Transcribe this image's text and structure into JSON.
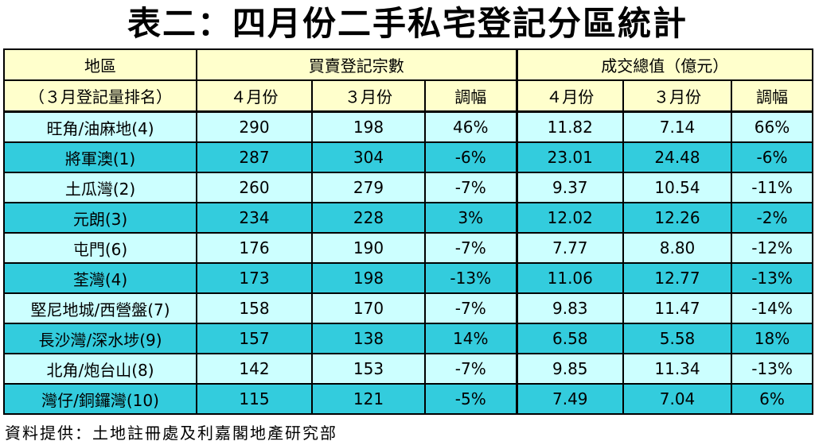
{
  "title": "表二：四月份二手私宅登記分區統計",
  "header": {
    "district": "地區",
    "rank_note": "（３月登記量排名）",
    "transactions": "買賣登記宗數",
    "value": "成交總值（億元）",
    "apr": "４月份",
    "mar": "３月份",
    "change": "調幅"
  },
  "rows": [
    {
      "district": "旺角/油麻地(4)",
      "tx_apr": "290",
      "tx_mar": "198",
      "tx_chg": "46%",
      "val_apr": "11.82",
      "val_mar": "7.14",
      "val_chg": "66%"
    },
    {
      "district": "將軍澳(1)",
      "tx_apr": "287",
      "tx_mar": "304",
      "tx_chg": "-6%",
      "val_apr": "23.01",
      "val_mar": "24.48",
      "val_chg": "-6%"
    },
    {
      "district": "土瓜灣(2)",
      "tx_apr": "260",
      "tx_mar": "279",
      "tx_chg": "-7%",
      "val_apr": "9.37",
      "val_mar": "10.54",
      "val_chg": "-11%"
    },
    {
      "district": "元朗(3)",
      "tx_apr": "234",
      "tx_mar": "228",
      "tx_chg": "3%",
      "val_apr": "12.02",
      "val_mar": "12.26",
      "val_chg": "-2%"
    },
    {
      "district": "屯門(6)",
      "tx_apr": "176",
      "tx_mar": "190",
      "tx_chg": "-7%",
      "val_apr": "7.77",
      "val_mar": "8.80",
      "val_chg": "-12%"
    },
    {
      "district": "荃灣(4)",
      "tx_apr": "173",
      "tx_mar": "198",
      "tx_chg": "-13%",
      "val_apr": "11.06",
      "val_mar": "12.77",
      "val_chg": "-13%"
    },
    {
      "district": "堅尼地城/西營盤(7)",
      "tx_apr": "158",
      "tx_mar": "170",
      "tx_chg": "-7%",
      "val_apr": "9.83",
      "val_mar": "11.47",
      "val_chg": "-14%"
    },
    {
      "district": "長沙灣/深水埗(9)",
      "tx_apr": "157",
      "tx_mar": "138",
      "tx_chg": "14%",
      "val_apr": "6.58",
      "val_mar": "5.58",
      "val_chg": "18%"
    },
    {
      "district": "北角/炮台山(8)",
      "tx_apr": "142",
      "tx_mar": "153",
      "tx_chg": "-7%",
      "val_apr": "9.85",
      "val_mar": "11.34",
      "val_chg": "-13%"
    },
    {
      "district": "灣仔/銅鑼灣(10)",
      "tx_apr": "115",
      "tx_mar": "121",
      "tx_chg": "-5%",
      "val_apr": "7.49",
      "val_mar": "7.04",
      "val_chg": "6%"
    }
  ],
  "footer": "資料提供：土地註冊處及利嘉閣地產研究部",
  "colors": {
    "header_bg": "#ffffcc",
    "row_light": "#ccffff",
    "row_dark": "#33ccdd"
  }
}
